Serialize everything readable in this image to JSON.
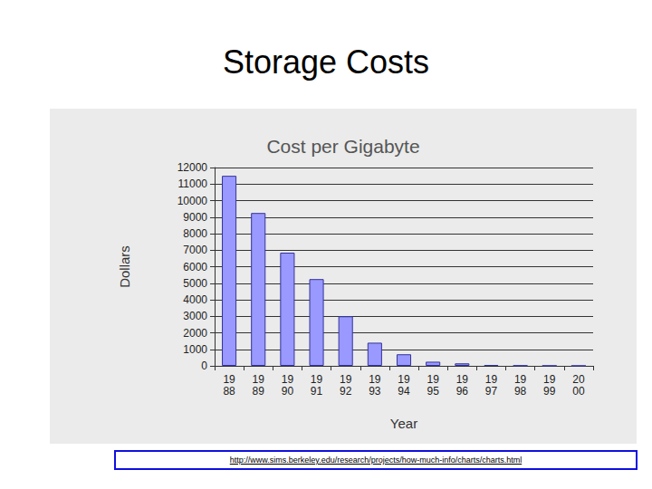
{
  "slide": {
    "title": "Storage Costs",
    "source": "http://www.sims.berkeley.edu/research/projects/how-much-info/charts/charts.html"
  },
  "chart_data": {
    "type": "bar",
    "title": "Cost per Gigabyte",
    "x_label": "Year",
    "y_label": "Dollars",
    "categories": [
      "1988",
      "1989",
      "1990",
      "1991",
      "1992",
      "1993",
      "1994",
      "1995",
      "1996",
      "1997",
      "1998",
      "1999",
      "2000"
    ],
    "values": [
      11500,
      9250,
      6850,
      5250,
      3000,
      1400,
      700,
      250,
      150,
      50,
      20,
      10,
      5
    ],
    "color": "#9999ff",
    "ylim": [
      0,
      12000
    ],
    "yticks": [
      0,
      1000,
      2000,
      3000,
      4000,
      5000,
      6000,
      7000,
      8000,
      9000,
      10000,
      11000,
      12000
    ],
    "grid": true
  }
}
